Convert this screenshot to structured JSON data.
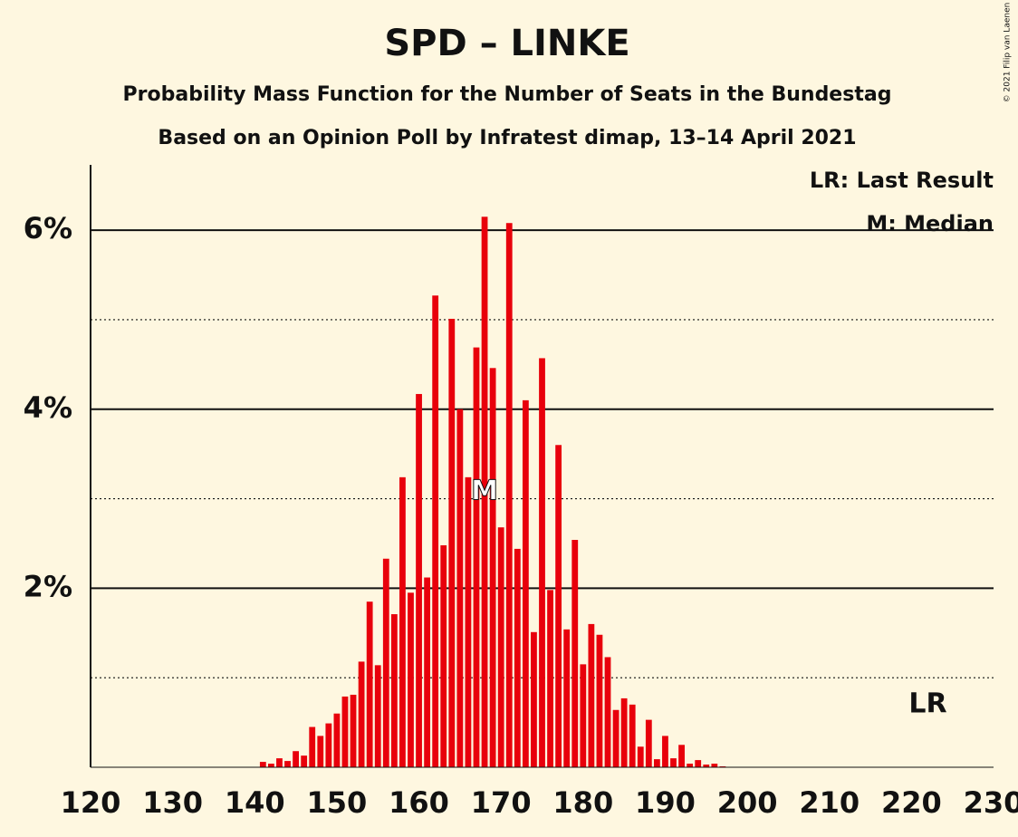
{
  "chart_data": {
    "type": "bar",
    "title": "SPD – LINKE",
    "subtitle": "Probability Mass Function for the Number of Seats in the Bundestag",
    "subtitle2": "Based on an Opinion Poll by Infratest dimap, 13–14 April 2021",
    "copyright": "© 2021 Filip van Laenen",
    "legend": [
      "LR: Last Result",
      "M: Median"
    ],
    "median": 168,
    "median_label": "M",
    "last_result": 222,
    "last_result_label": "LR",
    "color": "#e8000b",
    "x": [
      120,
      121,
      122,
      123,
      124,
      125,
      126,
      127,
      128,
      129,
      130,
      131,
      132,
      133,
      134,
      135,
      136,
      137,
      138,
      139,
      140,
      141,
      142,
      143,
      144,
      145,
      146,
      147,
      148,
      149,
      150,
      151,
      152,
      153,
      154,
      155,
      156,
      157,
      158,
      159,
      160,
      161,
      162,
      163,
      164,
      165,
      166,
      167,
      168,
      169,
      170,
      171,
      172,
      173,
      174,
      175,
      176,
      177,
      178,
      179,
      180,
      181,
      182,
      183,
      184,
      185,
      186,
      187,
      188,
      189,
      190,
      191,
      192,
      193,
      194,
      195,
      196,
      197,
      198,
      199,
      200,
      201,
      202,
      203,
      204,
      205,
      206,
      207,
      208,
      209,
      210,
      211,
      212,
      213,
      214,
      215,
      216,
      217,
      218,
      219,
      220,
      221,
      222,
      223,
      224,
      225,
      226,
      227,
      228,
      229,
      230
    ],
    "values": [
      0,
      0,
      0,
      0,
      0,
      0,
      0,
      0,
      0,
      0,
      0,
      0,
      0,
      0,
      0,
      0,
      0,
      0,
      0,
      0,
      0,
      0.06,
      0.04,
      0.1,
      0.07,
      0.18,
      0.13,
      0.45,
      0.35,
      0.49,
      0.6,
      0.79,
      0.81,
      1.18,
      1.85,
      1.14,
      2.33,
      1.71,
      3.24,
      1.95,
      4.17,
      2.12,
      5.27,
      2.48,
      5.01,
      4.0,
      3.24,
      4.69,
      6.15,
      4.46,
      2.68,
      6.08,
      2.44,
      4.1,
      1.51,
      4.57,
      1.98,
      3.6,
      1.54,
      2.54,
      1.15,
      1.6,
      1.48,
      1.23,
      0.64,
      0.77,
      0.7,
      0.23,
      0.53,
      0.09,
      0.35,
      0.1,
      0.25,
      0.04,
      0.08,
      0.03,
      0.04,
      0.01,
      0,
      0,
      0,
      0,
      0,
      0,
      0,
      0,
      0,
      0,
      0,
      0,
      0,
      0,
      0,
      0,
      0,
      0,
      0,
      0,
      0,
      0,
      0,
      0,
      0,
      0,
      0,
      0,
      0,
      0,
      0,
      0,
      0
    ],
    "xlim": [
      120,
      230
    ],
    "xticks": [
      120,
      130,
      140,
      150,
      160,
      170,
      180,
      190,
      200,
      210,
      220,
      230
    ],
    "ylim": [
      0,
      6.73
    ],
    "yticks": [
      {
        "value": 2,
        "label": "2%"
      },
      {
        "value": 4,
        "label": "4%"
      },
      {
        "value": 6,
        "label": "6%"
      }
    ],
    "minor_yticks": [
      1,
      3,
      5
    ],
    "grid": true
  }
}
